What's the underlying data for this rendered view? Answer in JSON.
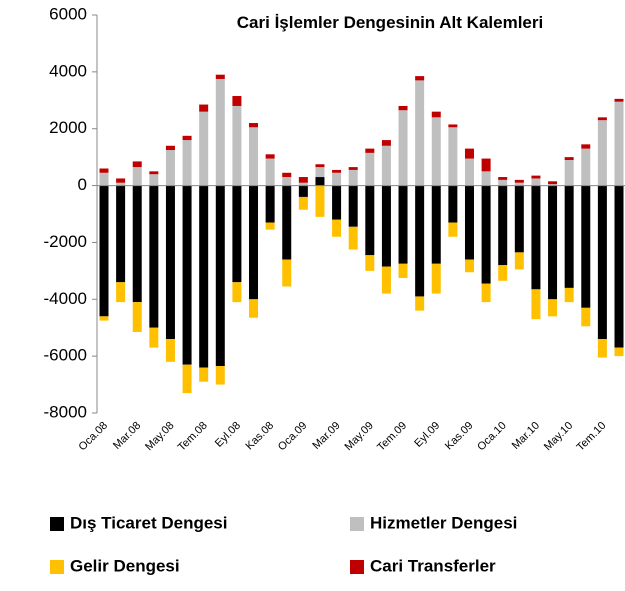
{
  "chart_data": {
    "type": "stacked-bar",
    "title": "Cari İşlemler Dengesinin Alt Kalemleri",
    "categories": [
      "Oca.08",
      null,
      "Mar.08",
      null,
      "May.08",
      null,
      "Tem.08",
      null,
      "Eyl.08",
      null,
      "Kas.08",
      null,
      "Oca.09",
      null,
      "Mar.09",
      null,
      "May.09",
      null,
      "Tem.09",
      null,
      "Eyl.09",
      null,
      "Kas.09",
      null,
      "Oca.10",
      null,
      "Mar.10",
      null,
      "May.10",
      null,
      "Tem.10",
      null
    ],
    "series": [
      {
        "name": "Dış Ticaret Dengesi",
        "color": "#000000",
        "values": [
          -4600,
          -3400,
          -4100,
          -5000,
          -5400,
          -6300,
          -6400,
          -6350,
          -3400,
          -4000,
          -1300,
          -2600,
          -400,
          300,
          -1200,
          -1450,
          -2450,
          -2850,
          -2750,
          -3900,
          -2750,
          -1300,
          -2600,
          -3450,
          -2800,
          -2350,
          -3650,
          -4000,
          -3600,
          -4300,
          -5400,
          -5700
        ]
      },
      {
        "name": "Hizmetler Dengesi",
        "color": "#bfbfbf",
        "values": [
          450,
          100,
          650,
          400,
          1250,
          1600,
          2600,
          3750,
          2800,
          2050,
          950,
          300,
          100,
          350,
          450,
          550,
          1150,
          1400,
          2650,
          3700,
          2400,
          2050,
          950,
          500,
          200,
          100,
          250,
          50,
          900,
          1300,
          2300,
          2950
        ]
      },
      {
        "name": "Gelir Dengesi",
        "color": "#ffc000",
        "values": [
          -150,
          -700,
          -1050,
          -700,
          -800,
          -1000,
          -500,
          -650,
          -700,
          -650,
          -250,
          -950,
          -450,
          -1100,
          -600,
          -800,
          -550,
          -950,
          -500,
          -500,
          -1050,
          -500,
          -450,
          -650,
          -550,
          -600,
          -1050,
          -600,
          -500,
          -650,
          -650,
          -300
        ]
      },
      {
        "name": "Cari Transferler",
        "color": "#c00000",
        "values": [
          150,
          150,
          200,
          100,
          150,
          150,
          250,
          150,
          350,
          150,
          150,
          150,
          200,
          100,
          100,
          100,
          150,
          200,
          150,
          150,
          200,
          100,
          350,
          450,
          100,
          100,
          100,
          100,
          100,
          150,
          100,
          100
        ]
      }
    ],
    "ylim": [
      -8000,
      6000
    ],
    "yticks": [
      -8000,
      -6000,
      -4000,
      -2000,
      0,
      2000,
      4000,
      6000
    ]
  }
}
